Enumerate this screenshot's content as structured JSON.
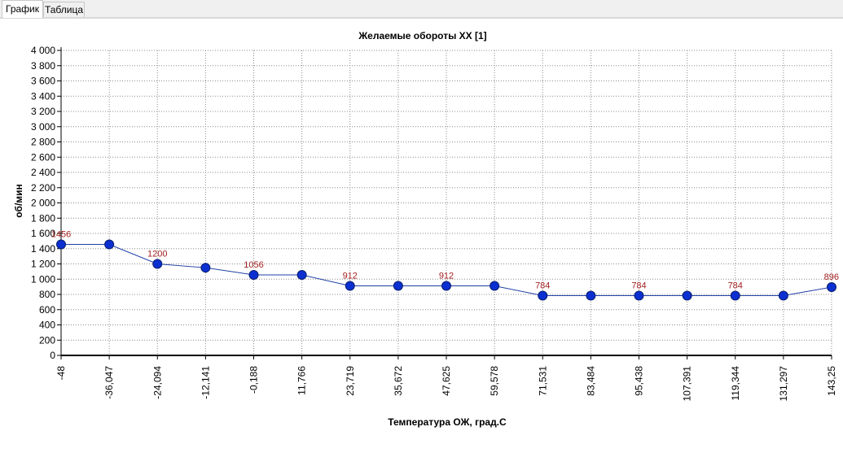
{
  "tabs": [
    {
      "label": "График",
      "active": true
    },
    {
      "label": "Таблица",
      "active": false
    }
  ],
  "colors": {
    "series": "#1f3fa3",
    "marker": "#0b2fd0",
    "data_label": "#a32020",
    "grid": "#8c8c8c"
  },
  "chart_data": {
    "type": "line",
    "title": "Желаемые обороты XX [1]",
    "xlabel": "Температура ОЖ, град.С",
    "ylabel": "об/мин",
    "ylim": [
      0,
      4000
    ],
    "y_ticks": [
      "0",
      "200",
      "400",
      "600",
      "800",
      "1 000",
      "1 200",
      "1 400",
      "1 600",
      "1 800",
      "2 000",
      "2 200",
      "2 400",
      "2 600",
      "2 800",
      "3 000",
      "3 200",
      "3 400",
      "3 600",
      "3 800",
      "4 000"
    ],
    "categories": [
      "-48",
      "-36,047",
      "-24,094",
      "-12,141",
      "-0,188",
      "11,766",
      "23,719",
      "35,672",
      "47,625",
      "59,578",
      "71,531",
      "83,484",
      "95,438",
      "107,391",
      "119,344",
      "131,297",
      "143,25"
    ],
    "series": [
      {
        "values": [
          1456,
          1456,
          1200,
          1150,
          1056,
          1056,
          912,
          912,
          912,
          912,
          784,
          784,
          784,
          784,
          784,
          784,
          896
        ]
      }
    ],
    "data_labels": [
      "1456",
      "",
      "1200",
      "",
      "1056",
      "",
      "912",
      "",
      "912",
      "",
      "784",
      "",
      "784",
      "",
      "784",
      "",
      "896"
    ],
    "grid": true,
    "legend": "none"
  }
}
